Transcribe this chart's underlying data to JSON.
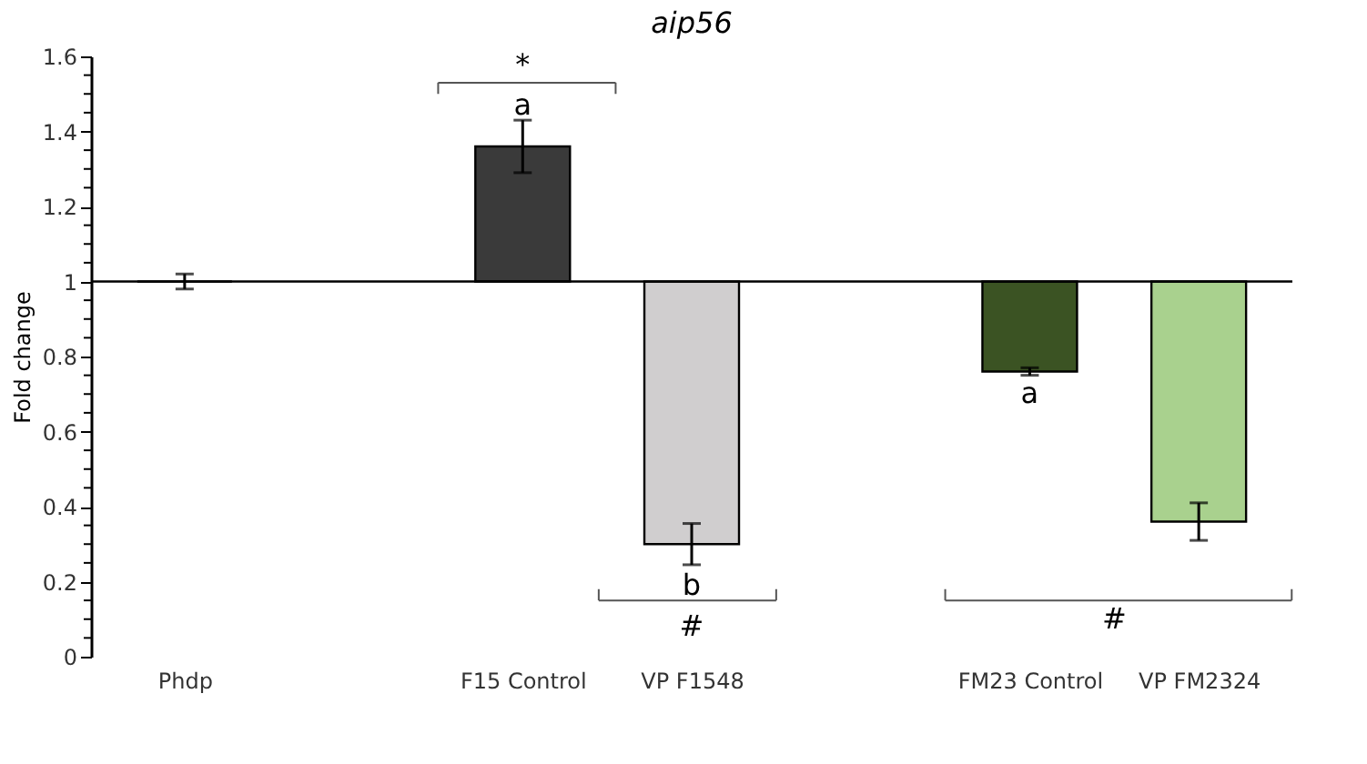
{
  "chart_data": {
    "type": "bar",
    "title": "aip56",
    "ylabel": "Fold change",
    "categories": [
      "Phdp",
      null,
      "F15 Control",
      "VP F1548",
      null,
      "FM23 Control",
      "VP FM2324"
    ],
    "base": [
      1,
      null,
      1,
      1,
      null,
      1,
      1
    ],
    "values": [
      0,
      null,
      0.36,
      -0.7,
      null,
      -0.24,
      -0.64
    ],
    "errors": [
      0.02,
      null,
      0.07,
      0.055,
      null,
      0.01,
      0.05
    ],
    "colors": [
      "#000000",
      "#ffffff",
      "#3a3a3a",
      "#d0cecf",
      "#ffffff",
      "#3b5323",
      "#a9d18e"
    ],
    "ylim": [
      0,
      1.6
    ],
    "yticks": [
      0,
      {
        "value": 0.05,
        "label": null
      },
      {
        "value": 0.1,
        "label": null
      },
      {
        "value": 0.15,
        "label": null
      },
      0.2,
      {
        "value": 0.25,
        "label": null
      },
      {
        "value": 0.3,
        "label": null
      },
      {
        "value": 0.35,
        "label": null
      },
      0.4,
      {
        "value": 0.45,
        "label": null
      },
      {
        "value": 0.5,
        "label": null
      },
      {
        "value": 0.55,
        "label": null
      },
      0.6,
      {
        "value": 0.65,
        "label": null
      },
      {
        "value": 0.7,
        "label": null
      },
      {
        "value": 0.75,
        "label": null
      },
      0.8,
      {
        "value": 0.85,
        "label": null
      },
      {
        "value": 0.9,
        "label": null
      },
      {
        "value": 0.95,
        "label": null
      },
      1,
      {
        "value": 1.05,
        "label": null
      },
      {
        "value": 1.1,
        "label": null
      },
      {
        "value": 1.15,
        "label": null
      },
      1.2,
      {
        "value": 1.25,
        "label": null
      },
      {
        "value": 1.3,
        "label": null
      },
      {
        "value": 1.35,
        "label": null
      },
      1.4,
      {
        "value": 1.45,
        "label": null
      },
      {
        "value": 1.5,
        "label": null
      },
      {
        "value": 1.55,
        "label": null
      },
      1.6
    ],
    "annotations": [
      "*",
      "a",
      "b",
      "#",
      "a",
      "#"
    ],
    "ref_lines": [
      {
        "axis": "y",
        "value": 1,
        "color": "#000000"
      }
    ],
    "grid": false
  }
}
